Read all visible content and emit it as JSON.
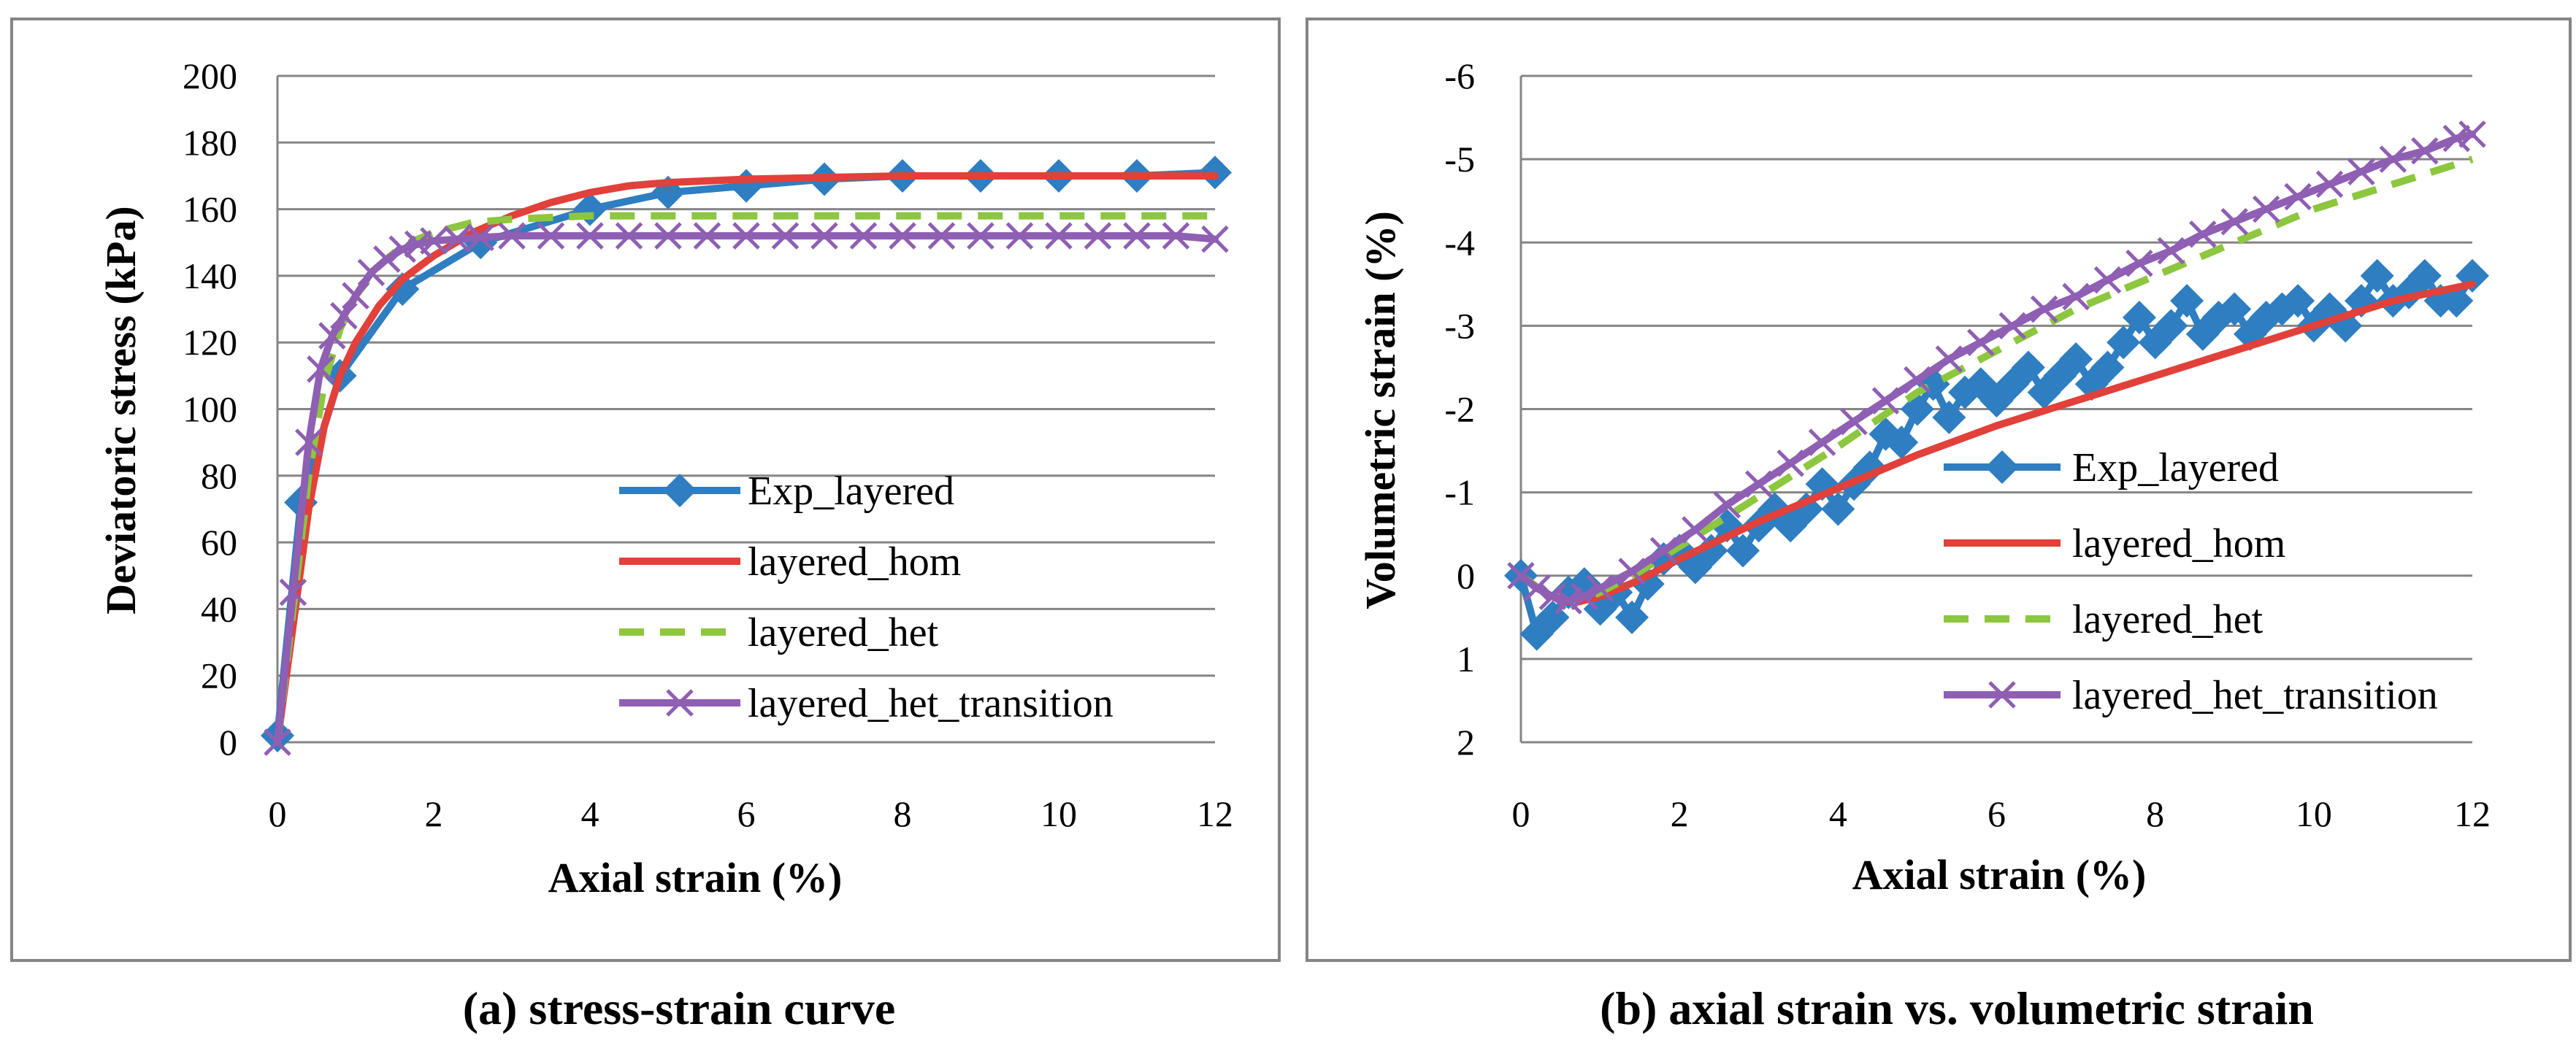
{
  "chart_data": [
    {
      "type": "line",
      "caption": "(a) stress-strain curve",
      "xlabel": "Axial strain (%)",
      "ylabel": "Deviatoric stress (kPa)",
      "xlim": [
        0,
        12
      ],
      "ylim": [
        0,
        200
      ],
      "xticks": [
        0,
        2,
        4,
        6,
        8,
        10,
        12
      ],
      "yticks": [
        0,
        20,
        40,
        60,
        80,
        100,
        120,
        140,
        160,
        180,
        200
      ],
      "y_inverted": false,
      "grid": true,
      "legend_position": "bottom-right",
      "series": [
        {
          "name": "Exp_layered",
          "color": "#2E7EC1",
          "style": "solid",
          "marker": "diamond",
          "x": [
            0,
            0.3,
            0.8,
            1.6,
            2.6,
            4,
            5,
            6,
            7,
            8,
            9,
            10,
            11,
            12
          ],
          "y": [
            2,
            72,
            110,
            136,
            150,
            160,
            165,
            167,
            169,
            170,
            170,
            170,
            170,
            171
          ]
        },
        {
          "name": "layered_hom",
          "color": "#E2403A",
          "style": "solid",
          "marker": "none",
          "x": [
            0,
            0.2,
            0.4,
            0.6,
            0.8,
            1.0,
            1.3,
            1.6,
            2.0,
            2.5,
            3.0,
            3.5,
            4.0,
            4.5,
            5.0,
            6.0,
            7.0,
            8.0,
            9.0,
            10.0,
            11.0,
            12.0
          ],
          "y": [
            0,
            35,
            70,
            95,
            110,
            120,
            131,
            139,
            146,
            153,
            158,
            162,
            165,
            167,
            168,
            169,
            169.5,
            170,
            170,
            170,
            170,
            170
          ]
        },
        {
          "name": "layered_het",
          "color": "#8DC63F",
          "style": "dashed",
          "marker": "none",
          "x": [
            0,
            0.2,
            0.4,
            0.6,
            0.8,
            1.0,
            1.3,
            1.6,
            2.0,
            2.5,
            3.0,
            4.0,
            5.0,
            6.0,
            8.0,
            10.0,
            12.0
          ],
          "y": [
            0,
            40,
            80,
            108,
            124,
            134,
            143,
            149,
            153,
            156,
            157,
            158,
            158,
            158,
            158,
            158,
            158
          ]
        },
        {
          "name": "layered_het_transition",
          "color": "#8F5FB3",
          "style": "solid",
          "marker": "x",
          "x": [
            0,
            0.2,
            0.4,
            0.55,
            0.7,
            0.85,
            1.0,
            1.2,
            1.4,
            1.6,
            1.8,
            2.0,
            2.3,
            2.6,
            3.0,
            3.5,
            4.0,
            4.5,
            5.0,
            5.5,
            6.0,
            6.5,
            7.0,
            7.5,
            8.0,
            8.5,
            9.0,
            9.5,
            10.0,
            10.5,
            11.0,
            11.5,
            12.0
          ],
          "y": [
            0,
            45,
            90,
            112,
            122,
            128,
            134,
            141,
            145,
            148,
            149.5,
            150.5,
            151,
            151.5,
            152,
            152,
            152,
            152,
            152,
            152,
            152,
            152,
            152,
            152,
            152,
            152,
            152,
            152,
            152,
            152,
            152,
            152,
            151
          ]
        }
      ]
    },
    {
      "type": "line",
      "caption": "(b) axial strain vs. volumetric strain",
      "xlabel": "Axial strain (%)",
      "ylabel": "Volumetric strain (%)",
      "xlim": [
        0,
        12
      ],
      "ylim": [
        -6,
        2
      ],
      "xticks": [
        0,
        2,
        4,
        6,
        8,
        10,
        12
      ],
      "yticks": [
        -6,
        -5,
        -4,
        -3,
        -2,
        -1,
        0,
        1,
        2
      ],
      "y_inverted": true,
      "grid": true,
      "legend_position": "bottom-right",
      "series": [
        {
          "name": "Exp_layered",
          "color": "#2E7EC1",
          "style": "solid",
          "marker": "diamond",
          "x": [
            0,
            0.2,
            0.4,
            0.6,
            0.8,
            1.0,
            1.2,
            1.4,
            1.6,
            1.8,
            2.0,
            2.2,
            2.4,
            2.6,
            2.8,
            3.0,
            3.2,
            3.4,
            3.6,
            3.8,
            4.0,
            4.2,
            4.4,
            4.6,
            4.8,
            5.0,
            5.2,
            5.4,
            5.6,
            5.8,
            6.0,
            6.2,
            6.4,
            6.6,
            6.8,
            7.0,
            7.2,
            7.4,
            7.6,
            7.8,
            8.0,
            8.2,
            8.4,
            8.6,
            8.8,
            9.0,
            9.2,
            9.4,
            9.6,
            9.8,
            10.0,
            10.2,
            10.4,
            10.6,
            10.8,
            11.0,
            11.2,
            11.4,
            11.6,
            11.8,
            12.0
          ],
          "y": [
            0,
            0.7,
            0.5,
            0.2,
            0.1,
            0.4,
            0.2,
            0.5,
            0.1,
            -0.2,
            -0.3,
            -0.1,
            -0.3,
            -0.6,
            -0.3,
            -0.6,
            -0.8,
            -0.6,
            -0.8,
            -1.1,
            -0.8,
            -1.1,
            -1.3,
            -1.7,
            -1.6,
            -2.0,
            -2.3,
            -1.9,
            -2.2,
            -2.3,
            -2.1,
            -2.3,
            -2.5,
            -2.2,
            -2.4,
            -2.6,
            -2.3,
            -2.5,
            -2.8,
            -3.1,
            -2.8,
            -3.0,
            -3.3,
            -2.9,
            -3.1,
            -3.2,
            -2.9,
            -3.1,
            -3.2,
            -3.3,
            -3.0,
            -3.2,
            -3.0,
            -3.3,
            -3.6,
            -3.3,
            -3.4,
            -3.6,
            -3.3,
            -3.3,
            -3.6
          ]
        },
        {
          "name": "layered_hom",
          "color": "#E2403A",
          "style": "solid",
          "marker": "none",
          "x": [
            0,
            0.3,
            0.5,
            0.7,
            1.0,
            1.5,
            2.0,
            3.0,
            4.0,
            5.0,
            6.0,
            7.0,
            8.0,
            9.0,
            10.0,
            11.0,
            12.0
          ],
          "y": [
            0,
            0.2,
            0.3,
            0.32,
            0.25,
            0.05,
            -0.2,
            -0.65,
            -1.05,
            -1.45,
            -1.8,
            -2.1,
            -2.4,
            -2.7,
            -3.0,
            -3.3,
            -3.5
          ]
        },
        {
          "name": "layered_het",
          "color": "#8DC63F",
          "style": "dashed",
          "marker": "none",
          "x": [
            0,
            0.3,
            0.6,
            0.8,
            1.0,
            1.5,
            2.0,
            3.0,
            4.0,
            5.0,
            6.0,
            7.0,
            8.0,
            9.0,
            10.0,
            11.0,
            12.0
          ],
          "y": [
            0,
            0.2,
            0.3,
            0.28,
            0.2,
            -0.05,
            -0.35,
            -0.95,
            -1.55,
            -2.2,
            -2.7,
            -3.2,
            -3.6,
            -4.0,
            -4.4,
            -4.7,
            -5.0
          ]
        },
        {
          "name": "layered_het_transition",
          "color": "#8F5FB3",
          "style": "solid",
          "marker": "x",
          "x": [
            0,
            0.2,
            0.4,
            0.6,
            0.8,
            1.0,
            1.4,
            1.8,
            2.2,
            2.6,
            3.0,
            3.4,
            3.8,
            4.2,
            4.6,
            5.0,
            5.4,
            5.8,
            6.2,
            6.6,
            7.0,
            7.4,
            7.8,
            8.2,
            8.6,
            9.0,
            9.4,
            9.8,
            10.2,
            10.6,
            11.0,
            11.4,
            11.8,
            12.0
          ],
          "y": [
            0,
            0.15,
            0.25,
            0.3,
            0.25,
            0.15,
            -0.05,
            -0.3,
            -0.55,
            -0.85,
            -1.1,
            -1.35,
            -1.6,
            -1.85,
            -2.1,
            -2.35,
            -2.6,
            -2.8,
            -3.0,
            -3.2,
            -3.35,
            -3.55,
            -3.75,
            -3.9,
            -4.1,
            -4.25,
            -4.4,
            -4.55,
            -4.7,
            -4.85,
            -5.0,
            -5.1,
            -5.25,
            -5.3
          ]
        }
      ]
    }
  ]
}
